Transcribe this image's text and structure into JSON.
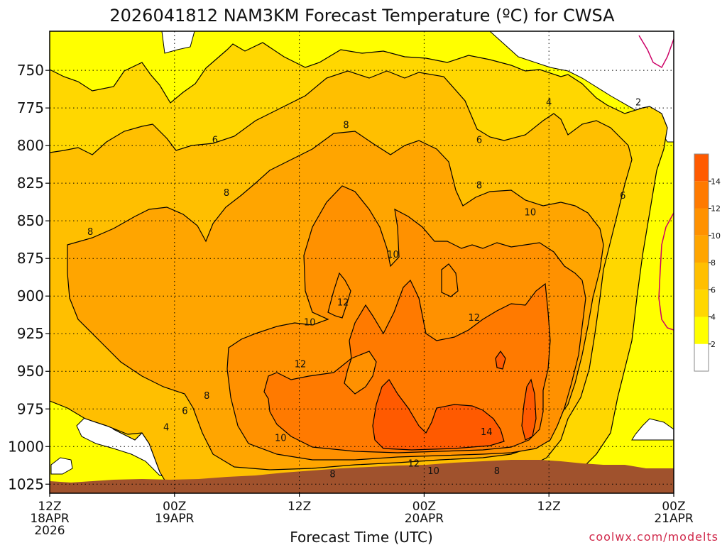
{
  "chart_data": {
    "type": "heatmap",
    "title": "2026041812 NAM3KM Forecast Temperature (ºC) for CWSA",
    "xlabel": "Forecast Time (UTC)",
    "ylabel": "",
    "x_ticks": [
      {
        "hour": 0,
        "lines": [
          "12Z",
          "18APR",
          "2026"
        ]
      },
      {
        "hour": 12,
        "lines": [
          "00Z",
          "19APR"
        ]
      },
      {
        "hour": 24,
        "lines": [
          "12Z"
        ]
      },
      {
        "hour": 36,
        "lines": [
          "00Z",
          "20APR"
        ]
      },
      {
        "hour": 48,
        "lines": [
          "12Z"
        ]
      },
      {
        "hour": 60,
        "lines": [
          "00Z",
          "21APR"
        ]
      }
    ],
    "xlim": [
      0,
      60
    ],
    "y_ticks": [
      750,
      775,
      800,
      825,
      850,
      875,
      900,
      925,
      950,
      975,
      1000,
      1025
    ],
    "ylim": [
      1031,
      724
    ],
    "grid": true,
    "colorbar": {
      "levels": [
        0,
        2,
        4,
        6,
        8,
        10,
        12,
        14,
        16
      ],
      "labels": [
        "2",
        "4",
        "6",
        "8",
        "10",
        "12",
        "14"
      ],
      "colors": [
        "#ffffff",
        "#ffff00",
        "#ffd700",
        "#ffbf00",
        "#ffa500",
        "#ff9100",
        "#ff7a00",
        "#ff5a00"
      ]
    },
    "contour_labels": [
      {
        "text": "2",
        "h": 56.6,
        "p": 771
      },
      {
        "text": "4",
        "h": 48.0,
        "p": 771
      },
      {
        "text": "4",
        "h": 11.2,
        "p": 987
      },
      {
        "text": "6",
        "h": 15.9,
        "p": 796
      },
      {
        "text": "6",
        "h": 41.3,
        "p": 796
      },
      {
        "text": "6",
        "h": 13.0,
        "p": 976
      },
      {
        "text": "6",
        "h": 55.1,
        "p": 833
      },
      {
        "text": "8",
        "h": 28.5,
        "p": 786
      },
      {
        "text": "8",
        "h": 17.0,
        "p": 831
      },
      {
        "text": "8",
        "h": 3.9,
        "p": 857
      },
      {
        "text": "8",
        "h": 41.3,
        "p": 826
      },
      {
        "text": "8",
        "h": 15.1,
        "p": 966
      },
      {
        "text": "8",
        "h": 27.2,
        "p": 1018
      },
      {
        "text": "8",
        "h": 43.0,
        "p": 1016
      },
      {
        "text": "10",
        "h": 46.2,
        "p": 844
      },
      {
        "text": "10",
        "h": 33.0,
        "p": 872
      },
      {
        "text": "10",
        "h": 25.0,
        "p": 917
      },
      {
        "text": "10",
        "h": 22.2,
        "p": 994
      },
      {
        "text": "10",
        "h": 36.9,
        "p": 1016
      },
      {
        "text": "12",
        "h": 28.2,
        "p": 904
      },
      {
        "text": "12",
        "h": 40.8,
        "p": 914
      },
      {
        "text": "12",
        "h": 24.1,
        "p": 945
      },
      {
        "text": "12",
        "h": 35.0,
        "p": 1011
      },
      {
        "text": "14",
        "h": 42.0,
        "p": 990
      }
    ],
    "terrain_color": "#a0522d",
    "credit": "coolwx.com/modelts"
  }
}
